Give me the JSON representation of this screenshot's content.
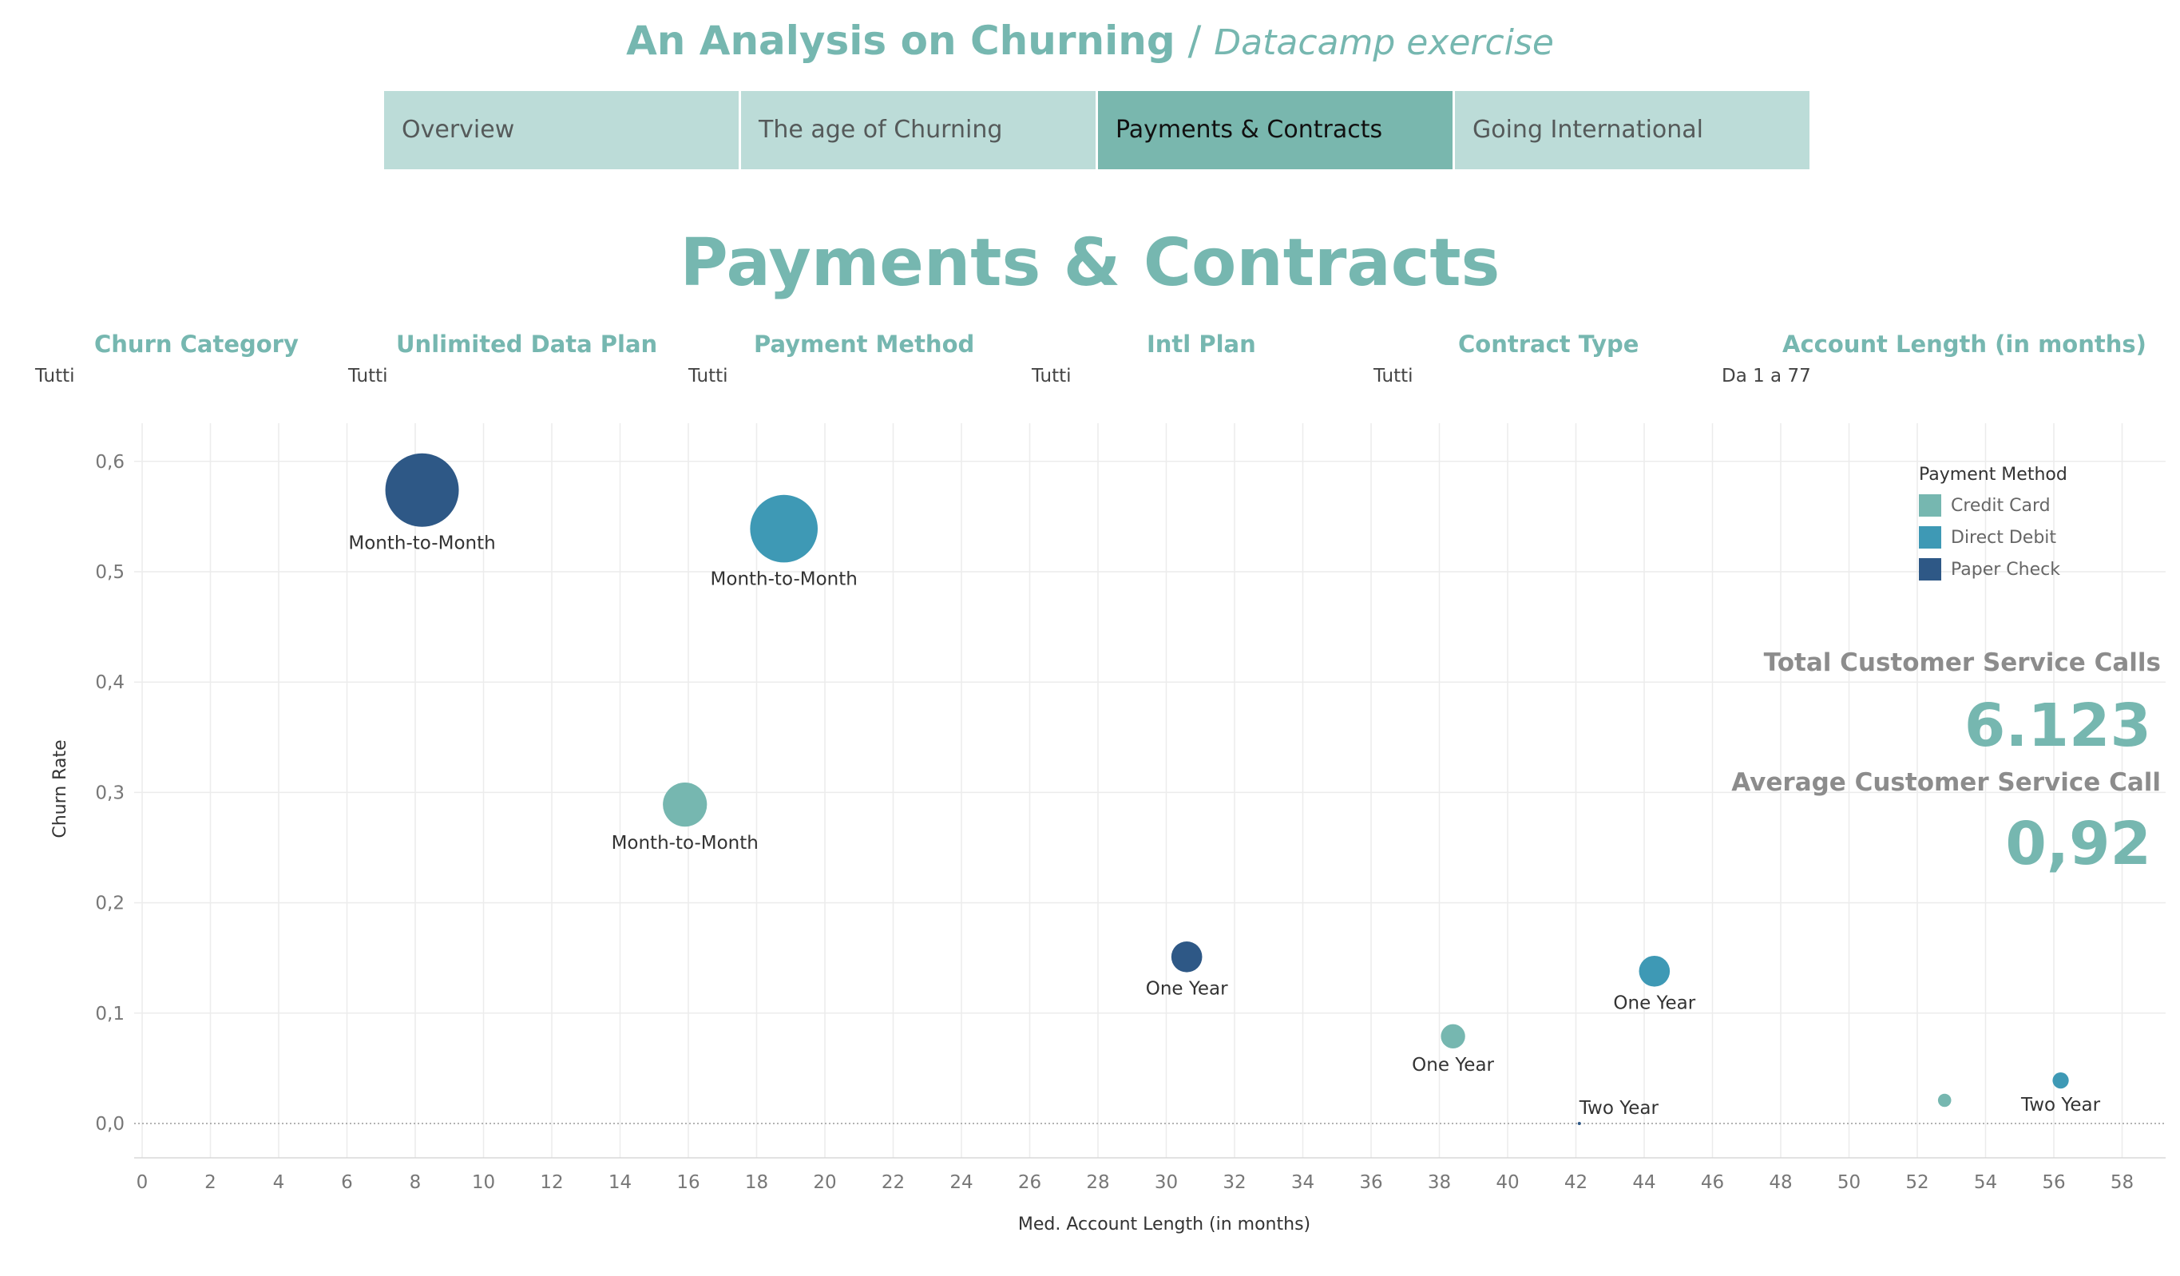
{
  "header": {
    "title": "An Analysis on Churning",
    "separator": " / ",
    "subtitle": "Datacamp exercise"
  },
  "tabs": [
    {
      "label": "Overview",
      "active": false
    },
    {
      "label": "The age of Churning",
      "active": false
    },
    {
      "label": "Payments & Contracts",
      "active": true
    },
    {
      "label": "Going International",
      "active": false
    }
  ],
  "page_heading": "Payments & Contracts",
  "filters": [
    {
      "label": "Churn Category",
      "value": "Tutti"
    },
    {
      "label": "Unlimited Data Plan",
      "value": "Tutti"
    },
    {
      "label": "Payment Method",
      "value": "Tutti"
    },
    {
      "label": "Intl Plan",
      "value": "Tutti"
    },
    {
      "label": "Contract Type",
      "value": "Tutti"
    },
    {
      "label": "Account Length (in months)",
      "value": "Da 1 a 77"
    }
  ],
  "legend": {
    "title": "Payment Method",
    "items": [
      {
        "label": "Credit Card",
        "color": "#76b7b0"
      },
      {
        "label": "Direct Debit",
        "color": "#3e99b5"
      },
      {
        "label": "Paper Check",
        "color": "#2e5886"
      }
    ]
  },
  "kpis": {
    "total_calls_label": "Total Customer Service Calls",
    "total_calls_value": "6.123",
    "avg_call_label": "Average Customer Service Call",
    "avg_call_value": "0,92"
  },
  "chart_data": {
    "type": "scatter",
    "xlabel": "Med. Account Length (in months)",
    "ylabel": "Churn Rate",
    "xlim": [
      0,
      59
    ],
    "ylim": [
      -0.03,
      0.63
    ],
    "x_ticks": [
      0,
      2,
      4,
      6,
      8,
      10,
      12,
      14,
      16,
      18,
      20,
      22,
      24,
      26,
      28,
      30,
      32,
      34,
      36,
      38,
      40,
      42,
      44,
      46,
      48,
      50,
      52,
      54,
      56,
      58
    ],
    "y_ticks": [
      0.0,
      0.1,
      0.2,
      0.3,
      0.4,
      0.5,
      0.6
    ],
    "y_tick_labels": [
      "0,0",
      "0,1",
      "0,2",
      "0,3",
      "0,4",
      "0,5",
      "0,6"
    ],
    "grid": true,
    "legend_position": "top-right",
    "points": [
      {
        "x": 8.2,
        "y": 0.574,
        "series": "Paper Check",
        "size": 1.0,
        "label": "Month-to-Month"
      },
      {
        "x": 18.8,
        "y": 0.539,
        "series": "Direct Debit",
        "size": 0.92,
        "label": "Month-to-Month"
      },
      {
        "x": 15.9,
        "y": 0.289,
        "series": "Credit Card",
        "size": 0.6,
        "label": "Month-to-Month"
      },
      {
        "x": 30.6,
        "y": 0.151,
        "series": "Paper Check",
        "size": 0.42,
        "label": "One Year"
      },
      {
        "x": 44.3,
        "y": 0.138,
        "series": "Direct Debit",
        "size": 0.42,
        "label": "One Year"
      },
      {
        "x": 38.4,
        "y": 0.079,
        "series": "Credit Card",
        "size": 0.33,
        "label": "One Year"
      },
      {
        "x": 42.1,
        "y": 0.0,
        "series": "Paper Check",
        "size": 0.03,
        "label": "Two Year"
      },
      {
        "x": 52.8,
        "y": 0.021,
        "series": "Credit Card",
        "size": 0.18,
        "label": ""
      },
      {
        "x": 56.2,
        "y": 0.039,
        "series": "Direct Debit",
        "size": 0.22,
        "label": "Two Year"
      }
    ]
  }
}
